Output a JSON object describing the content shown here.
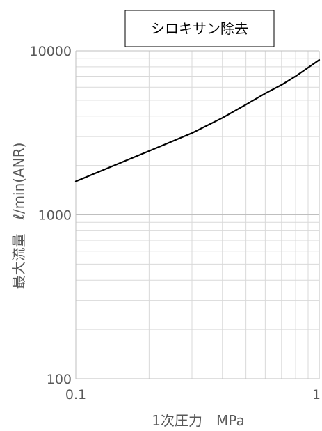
{
  "chart_data": {
    "type": "line",
    "title": "シロキサン除去",
    "xlabel": "1次圧力　MPa",
    "ylabel": "最大流量　ℓ/min(ANR)",
    "x_scale": "log",
    "y_scale": "log",
    "xlim": [
      0.1,
      1
    ],
    "ylim": [
      100,
      10000
    ],
    "x_ticks": [
      "0.1",
      "1"
    ],
    "y_ticks": [
      "100",
      "1000",
      "10000"
    ],
    "grid": true,
    "series": [
      {
        "color": "#000000",
        "x": [
          0.1,
          0.2,
          0.3,
          0.4,
          0.5,
          0.6,
          0.7,
          0.8,
          0.9,
          1.0
        ],
        "y": [
          1600,
          2450,
          3150,
          3900,
          4700,
          5500,
          6200,
          7000,
          7900,
          8800
        ]
      }
    ]
  }
}
